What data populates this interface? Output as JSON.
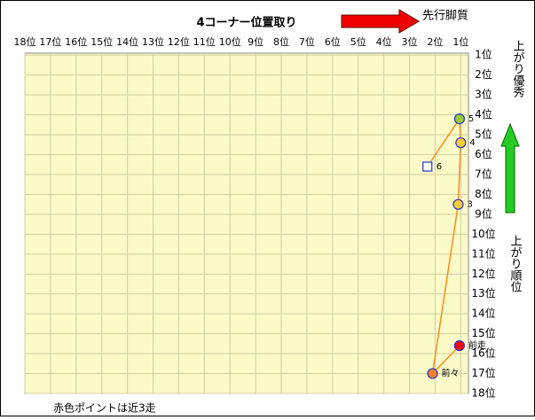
{
  "chart_data": {
    "type": "scatter",
    "title": "4コーナー位置取り",
    "annotations": {
      "x_direction": "先行脚質",
      "y_direction": "上がり優秀",
      "y_axis": "上がり順位",
      "note": "赤色ポイントは近3走"
    },
    "xlim": [
      18,
      0.7
    ],
    "ylim": [
      18,
      0.9
    ],
    "xticks": [
      {
        "value": 18,
        "label": "18位"
      },
      {
        "value": 17,
        "label": "17位"
      },
      {
        "value": 16,
        "label": "16位"
      },
      {
        "value": 15,
        "label": "15位"
      },
      {
        "value": 14,
        "label": "14位"
      },
      {
        "value": 13,
        "label": "13位"
      },
      {
        "value": 12,
        "label": "12位"
      },
      {
        "value": 11,
        "label": "11位"
      },
      {
        "value": 10,
        "label": "10位"
      },
      {
        "value": 9,
        "label": "9位"
      },
      {
        "value": 8,
        "label": "8位"
      },
      {
        "value": 7,
        "label": "7位"
      },
      {
        "value": 6,
        "label": "6位"
      },
      {
        "value": 5,
        "label": "5位"
      },
      {
        "value": 4,
        "label": "4位"
      },
      {
        "value": 3,
        "label": "3位"
      },
      {
        "value": 2,
        "label": "2位"
      },
      {
        "value": 1,
        "label": "1位"
      }
    ],
    "yticks": [
      {
        "value": 1,
        "label": "1位"
      },
      {
        "value": 2,
        "label": "2位"
      },
      {
        "value": 3,
        "label": "3位"
      },
      {
        "value": 4,
        "label": "4位"
      },
      {
        "value": 5,
        "label": "5位"
      },
      {
        "value": 6,
        "label": "6位"
      },
      {
        "value": 7,
        "label": "7位"
      },
      {
        "value": 8,
        "label": "8位"
      },
      {
        "value": 9,
        "label": "9位"
      },
      {
        "value": 10,
        "label": "10位"
      },
      {
        "value": 11,
        "label": "11位"
      },
      {
        "value": 12,
        "label": "12位"
      },
      {
        "value": 13,
        "label": "13位"
      },
      {
        "value": 14,
        "label": "14位"
      },
      {
        "value": 15,
        "label": "15位"
      },
      {
        "value": 16,
        "label": "16位"
      },
      {
        "value": 17,
        "label": "17位"
      },
      {
        "value": 18,
        "label": "18位"
      }
    ],
    "grid": true,
    "line_color": "#ff8c1a",
    "series": [
      {
        "x": [
          1.05,
          2.1,
          1.1,
          1.0,
          1.05,
          2.3
        ],
        "values": [
          15.6,
          17.0,
          8.5,
          5.4,
          4.2,
          6.6
        ],
        "labels": [
          "前走",
          "前々",
          "3",
          "4",
          "5",
          "6"
        ],
        "colors": [
          "#ff0000",
          "#ff7f27",
          "#ffcc33",
          "#ffcc33",
          "#99cc33",
          "#ffffff"
        ],
        "markers": [
          "circle",
          "circle",
          "circle",
          "circle",
          "circle",
          "square"
        ]
      }
    ]
  }
}
